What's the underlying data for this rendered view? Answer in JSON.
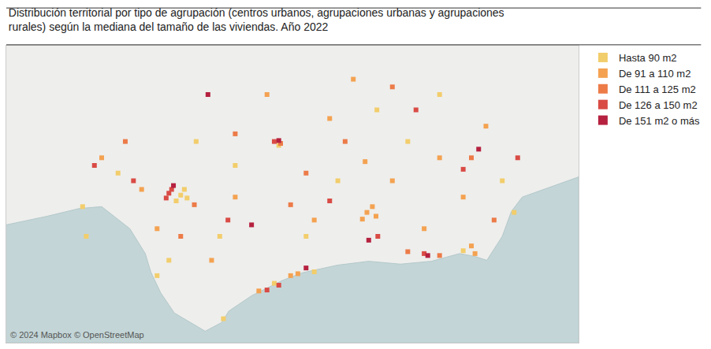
{
  "chart_data": {
    "type": "scatter",
    "title": "Distribución territorial por tipo de agrupación (centros urbanos, agrupaciones urbanas y agrupaciones\nrurales) según la mediana del tamaño de las viviendas. Año 2022",
    "annotations": [
      "© 2024 Mapbox © OpenStreetMap"
    ],
    "xlim": [
      -7.75,
      -1.45
    ],
    "ylim": [
      35.85,
      38.95
    ],
    "tick_labels": false,
    "grid": false,
    "legend": "right",
    "marker": "square",
    "sea_outline": {
      "x": [
        -7.75,
        -7.3,
        -6.95,
        -6.7,
        -6.39,
        -6.22,
        -6.16,
        -6.05,
        -5.9,
        -5.56,
        -5.38,
        -5.3,
        -5.05,
        -4.71,
        -4.49,
        -4.1,
        -3.76,
        -3.41,
        -3.07,
        -2.76,
        -2.59,
        -2.46,
        -2.29,
        -2.19,
        -2.07,
        -1.77,
        -1.45,
        -1.45,
        -7.75
      ],
      "y": [
        37.08,
        37.17,
        37.25,
        37.27,
        37.04,
        36.78,
        36.59,
        36.37,
        36.16,
        35.97,
        36.06,
        36.18,
        36.34,
        36.5,
        36.58,
        36.66,
        36.7,
        36.67,
        36.7,
        36.78,
        36.75,
        36.71,
        36.96,
        37.22,
        37.37,
        37.47,
        37.58,
        35.85,
        35.85
      ]
    },
    "series": [
      {
        "name": "Hasta 90 m2",
        "color": "#f2cd6b",
        "x": [
          -5.83,
          -5.79,
          -5.88,
          -5.76,
          -6.91,
          -6.09,
          -5.96,
          -4.75,
          -4.8,
          -4.36,
          -2.72,
          -5.36,
          -5.23,
          -4.1,
          -3.33,
          -2.29,
          -6.52,
          -5.4,
          -2.98,
          -3.67,
          -2.16,
          -6.87,
          -4.45,
          -5.66
        ],
        "y": [
          37.39,
          37.45,
          37.33,
          37.36,
          37.27,
          36.55,
          36.71,
          37.91,
          36.47,
          36.59,
          36.81,
          36.1,
          37.7,
          37.54,
          37.95,
          37.54,
          37.62,
          36.96,
          38.44,
          38.28,
          37.21,
          36.96,
          36.96,
          37.95
        ]
      },
      {
        "name": "De 91 a 110 m2",
        "color": "#f4a251",
        "x": [
          -3.78,
          -3.72,
          -3.83,
          -3.68,
          -3.8,
          -2.59,
          -4.62,
          -4.97,
          -4.54,
          -2.63,
          -4.88,
          -4.19,
          -3.5,
          -2.98,
          -2.47,
          -5.23,
          -6.26,
          -4.36,
          -3.15,
          -6.7,
          -5.49,
          -3.93,
          -2.72,
          -6.09
        ],
        "y": [
          37.21,
          37.27,
          37.14,
          37.17,
          37.74,
          36.78,
          36.55,
          36.39,
          36.57,
          36.86,
          38.44,
          38.19,
          37.54,
          37.78,
          38.11,
          37.37,
          37.45,
          37.13,
          37.04,
          37.78,
          36.71,
          38.6,
          37.37,
          37.04
        ]
      },
      {
        "name": "De 111 a 125 m2",
        "color": "#ec7b48",
        "x": [
          -4.73,
          -5.68,
          -3.33,
          -2.98,
          -5.23,
          -4.02,
          -2.63,
          -5.83,
          -4.62,
          -6.44,
          -3.5,
          -2.38,
          -4.45
        ],
        "y": [
          37.93,
          37.29,
          36.8,
          36.76,
          38.03,
          37.95,
          37.78,
          36.96,
          37.29,
          37.95,
          38.52,
          37.13,
          37.62
        ]
      },
      {
        "name": "De 126 a 150 m2",
        "color": "#d94b45",
        "x": [
          -5.96,
          -5.99,
          -5.93,
          -4.75,
          -4.88,
          -3.66,
          -3.15,
          -4.8,
          -2.72,
          -4.19,
          -6.35,
          -3.24,
          -5.31,
          -6.78,
          -2.12
        ],
        "y": [
          37.41,
          37.36,
          37.45,
          36.45,
          36.4,
          36.96,
          36.78,
          37.95,
          37.66,
          37.33,
          37.54,
          38.28,
          37.13,
          37.7,
          37.78
        ]
      },
      {
        "name": "De 151 m2 o más",
        "color": "#b5213f",
        "x": [
          -4.75,
          -5.05,
          -3.76,
          -3.11,
          -5.91,
          -4.45,
          -2.55,
          -5.53
        ],
        "y": [
          37.96,
          37.08,
          36.92,
          36.76,
          37.49,
          36.63,
          37.87,
          38.44
        ]
      }
    ]
  }
}
